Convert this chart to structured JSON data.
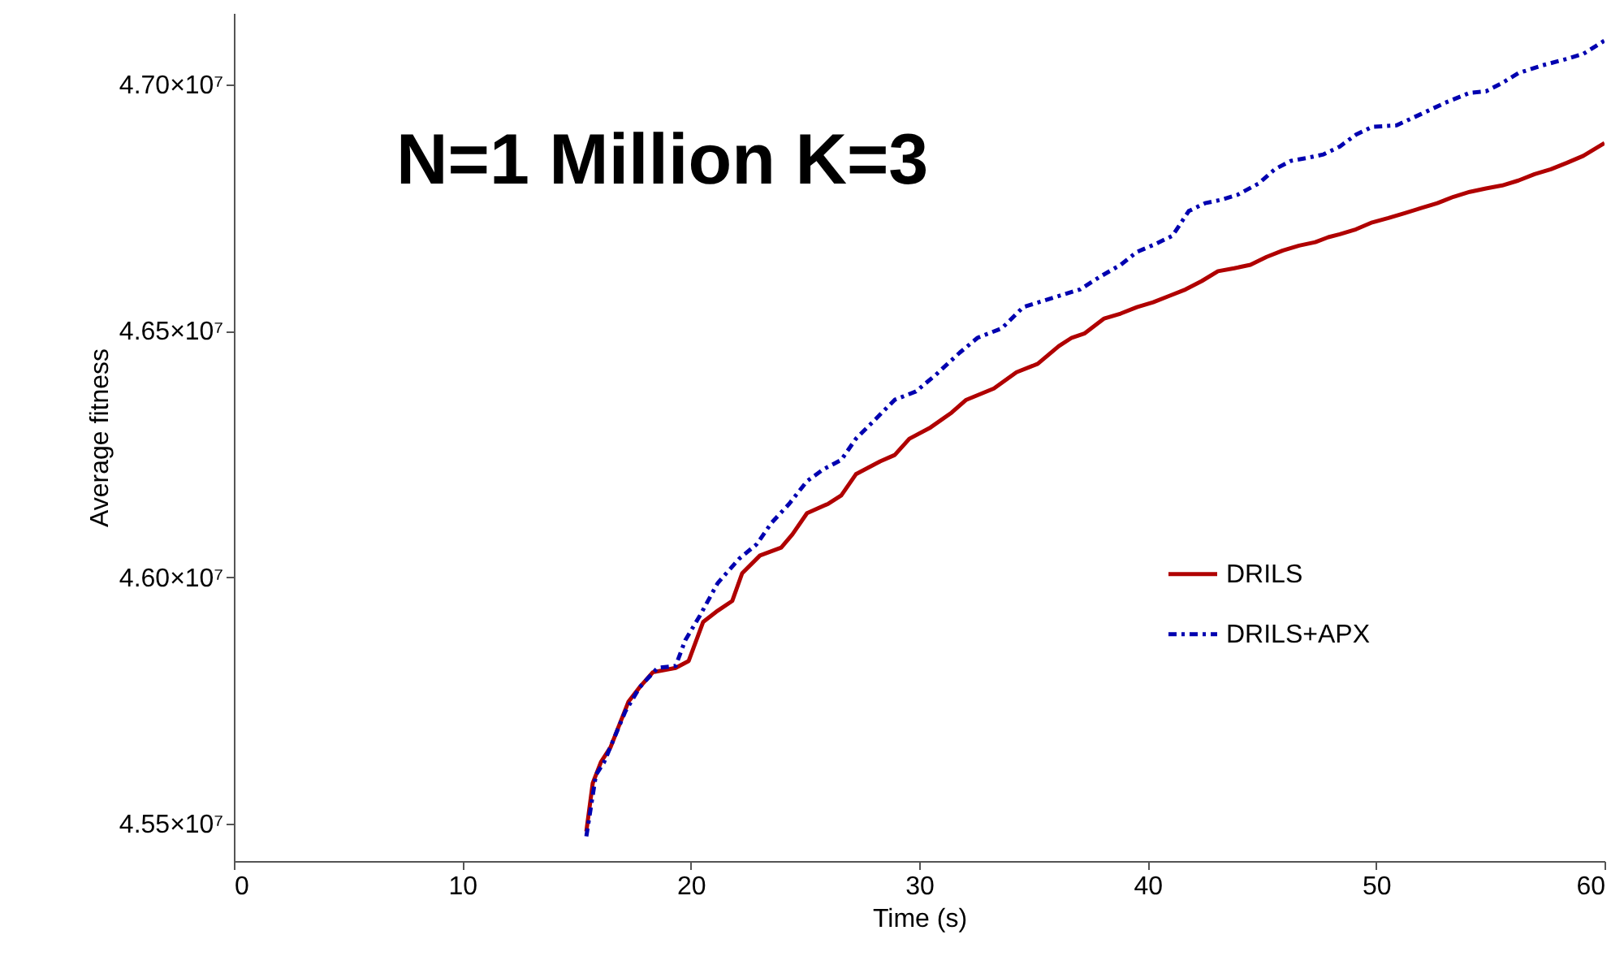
{
  "chart_data": {
    "type": "line",
    "title": "N=1 Million K=3",
    "xlabel": "Time (s)",
    "ylabel": "Average fitness",
    "xlim": [
      0,
      60
    ],
    "xticks": [
      0,
      10,
      20,
      30,
      40,
      50,
      60
    ],
    "ylim": [
      45424000,
      47145000
    ],
    "yticks": [
      {
        "value": 45500000,
        "label": "4.55×10⁷"
      },
      {
        "value": 46000000,
        "label": "4.60×10⁷"
      },
      {
        "value": 46500000,
        "label": "4.65×10⁷"
      },
      {
        "value": 47000000,
        "label": "4.70×10⁷"
      }
    ],
    "grid": false,
    "legend": "right",
    "series": [
      {
        "name": "DRILS",
        "color": "#b00000",
        "line_style": "solid",
        "x": [
          15.43,
          15.71,
          16.07,
          16.49,
          17.27,
          17.77,
          18.34,
          19.34,
          19.91,
          20.54,
          21.18,
          21.82,
          22.25,
          23.03,
          23.96,
          24.45,
          25.09,
          26.02,
          26.59,
          27.23,
          28.29,
          28.93,
          29.57,
          30.5,
          31.42,
          32.06,
          33.27,
          34.26,
          35.19,
          36.11,
          36.68,
          37.25,
          38.1,
          38.82,
          39.53,
          40.24,
          40.95,
          41.66,
          42.37,
          43.08,
          43.79,
          44.5,
          45.21,
          45.92,
          46.63,
          47.34,
          47.91,
          48.41,
          49.12,
          49.83,
          50.54,
          51.26,
          51.97,
          52.68,
          53.39,
          54.1,
          54.81,
          55.52,
          56.23,
          56.94,
          57.65,
          58.36,
          59.07,
          60
        ],
        "values": [
          45484000,
          45582000,
          45625000,
          45655000,
          45747000,
          45777000,
          45807000,
          45816000,
          45830000,
          45909000,
          45932000,
          45952000,
          46008000,
          46044000,
          46060000,
          46087000,
          46130000,
          46149000,
          46166000,
          46209000,
          46235000,
          46248000,
          46281000,
          46304000,
          46334000,
          46360000,
          46383000,
          46416000,
          46433000,
          46469000,
          46486000,
          46495000,
          46525000,
          46535000,
          46548000,
          46558000,
          46571000,
          46584000,
          46601000,
          46621000,
          46627000,
          46634000,
          46650000,
          46663000,
          46673000,
          46680000,
          46690000,
          46696000,
          46706000,
          46720000,
          46729000,
          46739000,
          46749000,
          46759000,
          46772000,
          46782000,
          46789000,
          46795000,
          46805000,
          46818000,
          46828000,
          46841000,
          46855000,
          46881000
        ]
      },
      {
        "name": "DRILS+APX",
        "color": "#0000b0",
        "line_style": "dashed",
        "x": [
          15.43,
          15.85,
          16.21,
          17.13,
          17.77,
          18.55,
          19.34,
          19.76,
          20.4,
          21.18,
          22.11,
          22.89,
          23.53,
          24.31,
          25.09,
          25.81,
          26.59,
          27.23,
          28.01,
          28.93,
          29.86,
          30.78,
          31.78,
          32.56,
          33.62,
          34.55,
          37.04,
          37.96,
          38.82,
          39.53,
          40.38,
          41.09,
          41.8,
          42.51,
          43.22,
          43.93,
          44.86,
          45.57,
          46.28,
          46.99,
          47.7,
          48.41,
          49.12,
          49.83,
          50.9,
          51.97,
          53.03,
          54.1,
          54.81,
          55.52,
          56.23,
          57.3,
          58.36,
          59.07,
          60
        ],
        "values": [
          45474000,
          45599000,
          45625000,
          45727000,
          45777000,
          45816000,
          45820000,
          45872000,
          45922000,
          45988000,
          46037000,
          46067000,
          46110000,
          46149000,
          46195000,
          46219000,
          46238000,
          46281000,
          46317000,
          46360000,
          46377000,
          46413000,
          46456000,
          46486000,
          46505000,
          46548000,
          46584000,
          46611000,
          46634000,
          46660000,
          46677000,
          46693000,
          46743000,
          46759000,
          46766000,
          46776000,
          46799000,
          46828000,
          46845000,
          46851000,
          46858000,
          46874000,
          46898000,
          46914000,
          46917000,
          46940000,
          46963000,
          46983000,
          46986000,
          47003000,
          47023000,
          47039000,
          47052000,
          47062000,
          47089000
        ]
      }
    ]
  }
}
